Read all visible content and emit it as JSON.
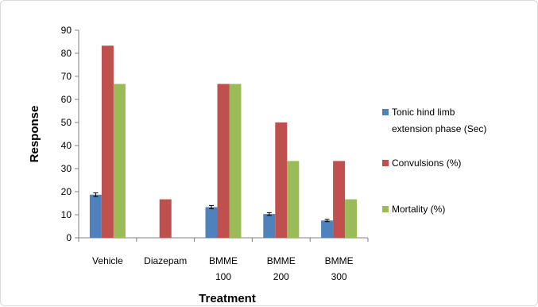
{
  "chart_data": {
    "type": "bar",
    "title": "",
    "xlabel": "Treatment",
    "ylabel": "Response",
    "ylim": [
      0,
      90
    ],
    "yticks": [
      0,
      10,
      20,
      30,
      40,
      50,
      60,
      70,
      80,
      90
    ],
    "grid": false,
    "legend_position": "right",
    "categories": [
      [
        "Vehicle"
      ],
      [
        "Diazepam"
      ],
      [
        "BMME",
        "100"
      ],
      [
        "BMME",
        "200"
      ],
      [
        "BMME",
        "300"
      ]
    ],
    "series": [
      {
        "name": [
          "Tonic hind limb",
          "extension phase (Sec)"
        ],
        "color": "#4F81BD",
        "values": [
          18.7,
          0,
          13.3,
          10.3,
          7.5
        ],
        "errors": [
          0.8,
          0,
          0.7,
          0.6,
          0.5
        ]
      },
      {
        "name": [
          "Convulsions (%)"
        ],
        "color": "#C0504D",
        "values": [
          83.3,
          16.7,
          66.7,
          50,
          33.3
        ],
        "errors": [
          0,
          0,
          0,
          0,
          0
        ]
      },
      {
        "name": [
          "Mortality (%)"
        ],
        "color": "#9BBB59",
        "values": [
          66.7,
          0,
          66.7,
          33.3,
          16.7
        ],
        "errors": [
          0,
          0,
          0,
          0,
          0
        ]
      }
    ]
  }
}
